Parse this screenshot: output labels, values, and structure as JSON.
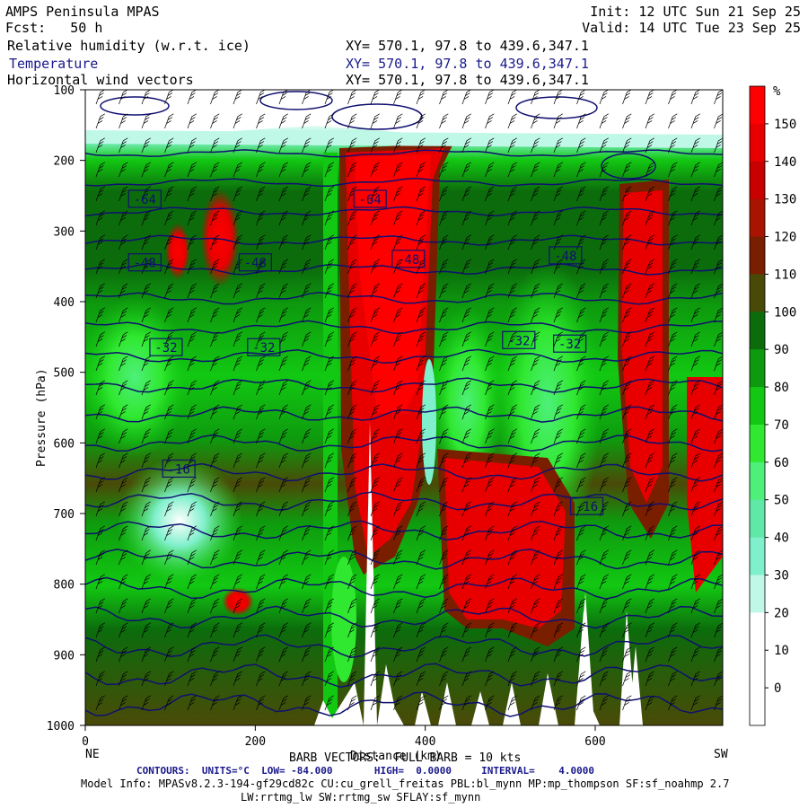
{
  "header": {
    "title": "AMPS Peninsula MPAS",
    "fcst": "Fcst:   50 h",
    "init": "Init: 12 UTC Sun 21 Sep 25",
    "valid": "Valid: 14 UTC Tue 23 Sep 25",
    "field1": "Relative humidity (w.r.t. ice)",
    "field2": "Temperature",
    "field3": "Horizontal wind vectors",
    "xy1": "XY= 570.1, 97.8 to 439.6,347.1",
    "xy2": "XY= 570.1, 97.8 to 439.6,347.1",
    "xy3": "XY= 570.1, 97.8 to 439.6,347.1"
  },
  "footer": {
    "barb": "BARB VECTORS:  FULL BARB = 10 kts",
    "contours": "CONTOURS:  UNITS=°C  LOW= -84.000       HIGH=  0.0000     INTERVAL=    4.0000",
    "model1": "Model Info: MPASv8.2.3-194-gf29cd82c CU:cu_grell_freitas PBL:bl_mynn MP:mp_thompson SF:sf_noahmp 2.7",
    "model2": "LW:rrtmg_lw SW:rrtmg_sw SFLAY:sf_mynn"
  },
  "chart_data": {
    "type": "heatmap",
    "description_fields": [
      "Relative humidity (w.r.t. ice)",
      "Temperature",
      "Horizontal wind vectors"
    ],
    "ylabel": "Pressure (hPa)",
    "xlabel": "Distance (km)",
    "yticks": [
      "100",
      "200",
      "300",
      "400",
      "500",
      "600",
      "700",
      "800",
      "900",
      "1000"
    ],
    "ylim": [
      1000,
      100
    ],
    "xticks": [
      "0",
      "200",
      "400",
      "600"
    ],
    "xlim": [
      0,
      750
    ],
    "x_end_labels": {
      "left": "NE",
      "right": "SW"
    },
    "colorbar": {
      "unit": "%",
      "levels": [
        "150",
        "140",
        "130",
        "120",
        "110",
        "100",
        "90",
        "80",
        "70",
        "60",
        "50",
        "40",
        "30",
        "20",
        "10",
        "0"
      ],
      "colors": [
        "#ff0000",
        "#e80000",
        "#c80000",
        "#a81400",
        "#7a1e00",
        "#4a4a08",
        "#0c6c0c",
        "#0e9a0e",
        "#12c812",
        "#30e830",
        "#4ef07a",
        "#60e8a8",
        "#80f0cc",
        "#c0f8e8",
        "#ffffff",
        "#ffffff",
        "#ffffff"
      ]
    },
    "temperature_labels": [
      {
        "value": "-64",
        "x_km": 70,
        "p": 255
      },
      {
        "value": "-64",
        "x_km": 335,
        "p": 255
      },
      {
        "value": "-48",
        "x_km": 70,
        "p": 345
      },
      {
        "value": "-48",
        "x_km": 200,
        "p": 345
      },
      {
        "value": "-48",
        "x_km": 380,
        "p": 340
      },
      {
        "value": "-48",
        "x_km": 565,
        "p": 335
      },
      {
        "value": "-32",
        "x_km": 95,
        "p": 465
      },
      {
        "value": "-32",
        "x_km": 210,
        "p": 465
      },
      {
        "value": "-32",
        "x_km": 510,
        "p": 455
      },
      {
        "value": "-32",
        "x_km": 570,
        "p": 460
      },
      {
        "value": "-16",
        "x_km": 110,
        "p": 637
      },
      {
        "value": "-16",
        "x_km": 590,
        "p": 690
      }
    ],
    "temperature_contours_c": [
      -76,
      -72,
      -68,
      -64,
      -60,
      -56,
      -52,
      -48,
      -44,
      -40,
      -36,
      -32,
      -28,
      -24,
      -20,
      -16,
      -12,
      -8,
      -4,
      0
    ],
    "terrain_peaks_km": [
      410,
      620,
      700
    ]
  }
}
